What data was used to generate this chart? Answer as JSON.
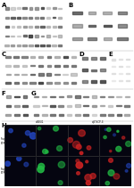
{
  "background_color": "#ffffff",
  "wb_bg_color": "#e0e0e0",
  "wb_bg_color2": "#c8c8c8",
  "gel_bg_color": "#111111",
  "icc_colors": {
    "blue": "#2244bb",
    "green": "#22bb44",
    "red": "#cc2222",
    "merge_bg": "#111133"
  },
  "panel_label_fontsize": 5,
  "label_color": "#000000",
  "separator_color": "#aaaaaa"
}
